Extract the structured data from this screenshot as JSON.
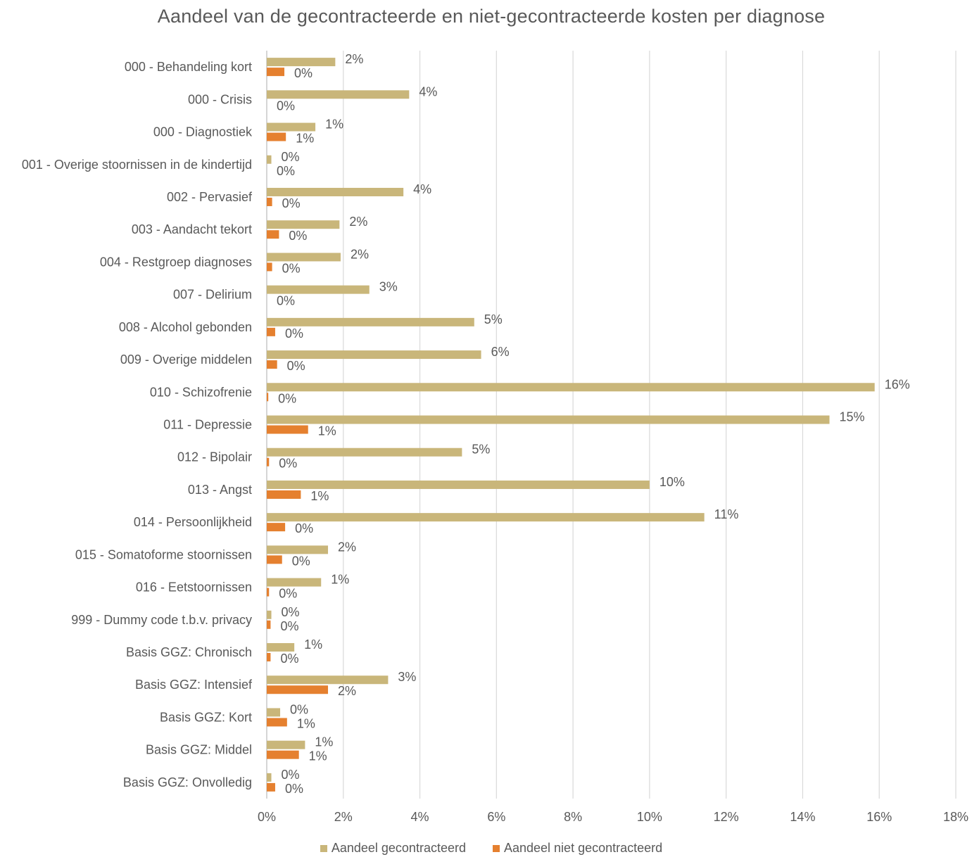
{
  "chart_data": {
    "type": "bar",
    "orientation": "horizontal",
    "title": "Aandeel van de gecontracteerde en niet-gecontracteerde kosten per diagnose",
    "categories": [
      "000 - Behandeling kort",
      "000 - Crisis",
      "000 - Diagnostiek",
      "001 - Overige stoornissen in de kindertijd",
      "002 - Pervasief",
      "003 - Aandacht tekort",
      "004 - Restgroep diagnoses",
      "007 - Delirium",
      "008 - Alcohol gebonden",
      "009 - Overige middelen",
      "010 - Schizofrenie",
      "011 - Depressie",
      "012 - Bipolair",
      "013 - Angst",
      "014 - Persoonlijkheid",
      "015 - Somatoforme stoornissen",
      "016 - Eetstoornissen",
      "999 - Dummy code t.b.v. privacy",
      "Basis GGZ: Chronisch",
      "Basis GGZ: Intensief",
      "Basis GGZ: Kort",
      "Basis GGZ: Middel",
      "Basis GGZ: Onvolledig"
    ],
    "series": [
      {
        "name": "Aandeel gecontracteerd",
        "color": "#C9B67A",
        "values": [
          1.79,
          3.72,
          1.27,
          0.12,
          3.57,
          1.9,
          1.93,
          2.68,
          5.42,
          5.6,
          15.88,
          14.7,
          5.1,
          10.0,
          11.43,
          1.6,
          1.42,
          0.12,
          0.72,
          3.17,
          0.35,
          1.0,
          0.12
        ],
        "labels": [
          "2%",
          "4%",
          "1%",
          "0%",
          "4%",
          "2%",
          "2%",
          "3%",
          "5%",
          "6%",
          "16%",
          "15%",
          "5%",
          "10%",
          "11%",
          "2%",
          "1%",
          "0%",
          "1%",
          "3%",
          "0%",
          "1%",
          "0%"
        ]
      },
      {
        "name": "Aandeel niet gecontracteerd",
        "color": "#E5802F",
        "values": [
          0.46,
          0.0,
          0.5,
          0.0,
          0.14,
          0.32,
          0.14,
          0.0,
          0.22,
          0.27,
          0.04,
          1.08,
          0.06,
          0.89,
          0.48,
          0.4,
          0.06,
          0.1,
          0.1,
          1.6,
          0.53,
          0.84,
          0.22
        ],
        "labels": [
          "0%",
          "0%",
          "1%",
          "0%",
          "0%",
          "0%",
          "0%",
          "0%",
          "0%",
          "0%",
          "0%",
          "1%",
          "0%",
          "1%",
          "0%",
          "0%",
          "0%",
          "0%",
          "0%",
          "2%",
          "1%",
          "1%",
          "0%"
        ]
      }
    ],
    "x_ticks": [
      "0%",
      "2%",
      "4%",
      "6%",
      "8%",
      "10%",
      "12%",
      "14%",
      "16%",
      "18%"
    ],
    "xlim": [
      0,
      18
    ],
    "grid": "vertical",
    "legend_position": "bottom"
  }
}
